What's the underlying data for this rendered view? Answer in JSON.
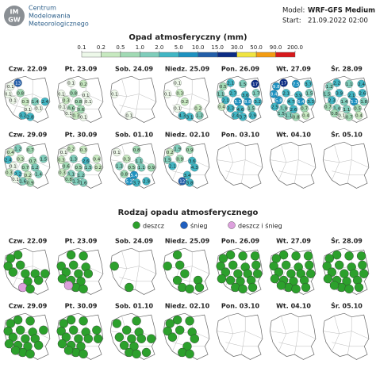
{
  "header": {
    "logo_top": "IM",
    "logo_bottom": "GW",
    "org": [
      "Centrum",
      "Modelowania",
      "Meteorologicznego"
    ],
    "model_label": "Model:",
    "model": "WRF-GFS Medium",
    "start_label": "Start:",
    "start": "21.09.2022 02:00"
  },
  "precip": {
    "title": "Opad atmosferyczny (mm)",
    "ticks": [
      0.1,
      0.2,
      0.5,
      {
        "value": 1,
        "label": "1.0"
      },
      {
        "value": 2,
        "label": "2.0"
      },
      {
        "value": 5,
        "label": "5.0"
      },
      {
        "value": 10,
        "label": "10.0"
      },
      {
        "value": 15,
        "label": "15.0"
      },
      {
        "value": 30,
        "label": "30.0"
      },
      {
        "value": 50,
        "label": "50.0"
      },
      {
        "value": 90,
        "label": "90.0"
      },
      {
        "value": 200,
        "label": "200.0"
      }
    ],
    "colors": [
      "#edf8e9",
      "#c7e9c0",
      "#a1dab4",
      "#7fcdbb",
      "#41b6c4",
      "#1d91c0",
      "#225ea8",
      "#0c2c84",
      "#f0e442",
      "#f39c12",
      "#d7191c"
    ]
  },
  "type_section": {
    "title": "Rodzaj opadu atmosferycznego",
    "types": [
      {
        "name": "deszcz",
        "color": "#2ca02c"
      },
      {
        "name": "śnieg",
        "color": "#1f5fbf"
      },
      {
        "name": "deszcz i śnieg",
        "color": "#dda0dd"
      }
    ]
  },
  "days": [
    {
      "label": "Czw. 22.09",
      "values": [
        13,
        0.1,
        null,
        null,
        0.1,
        0.8,
        null,
        null,
        0.1,
        0.3,
        1.4,
        2.4,
        null,
        null,
        0.1,
        0.1,
        3.2,
        2.8,
        null,
        null
      ],
      "types": [
        0,
        0,
        null,
        null,
        0,
        0,
        null,
        null,
        0,
        0,
        0,
        0,
        null,
        null,
        0,
        0,
        2,
        0,
        null,
        null
      ]
    },
    {
      "label": "Pt. 23.09",
      "values": [
        0.1,
        null,
        0.2,
        null,
        0.1,
        0.8,
        0.1,
        null,
        0.3,
        0.8,
        0.1,
        null,
        0.1,
        0.6,
        0.6,
        null,
        0.3,
        0.1,
        null,
        0.1
      ],
      "types": [
        0,
        null,
        0,
        null,
        0,
        0,
        0,
        null,
        0,
        0,
        0,
        null,
        0,
        0,
        0,
        null,
        0,
        0,
        null,
        2
      ]
    },
    {
      "label": "Sob. 24.09",
      "values": [
        null,
        null,
        null,
        null,
        0.1,
        null,
        null,
        null,
        null,
        null,
        null,
        null,
        null,
        null,
        null,
        null,
        0.1,
        null,
        null,
        null
      ],
      "types": [
        null,
        null,
        null,
        null,
        0,
        null,
        null,
        null,
        null,
        null,
        null,
        null,
        null,
        null,
        null,
        null,
        0,
        null,
        null,
        null
      ]
    },
    {
      "label": "Niedz. 25.09",
      "values": [
        0.1,
        null,
        null,
        null,
        0.1,
        0.3,
        null,
        null,
        null,
        0.2,
        null,
        null,
        null,
        0.1,
        null,
        0.2,
        4.3,
        3.1,
        1.2,
        null
      ],
      "types": [
        0,
        null,
        null,
        null,
        0,
        0,
        null,
        null,
        null,
        0,
        null,
        null,
        null,
        0,
        null,
        0,
        0,
        0,
        0,
        null
      ]
    },
    {
      "label": "Pon. 26.09",
      "values": [
        2.1,
        0.5,
        1.5,
        17,
        1.1,
        2.7,
        3.6,
        1.7,
        2.1,
        5.1,
        8.8,
        3.2,
        0.4,
        3.3,
        4.6,
        1.5,
        2.4,
        3.7,
        2.9,
        null
      ],
      "types": [
        0,
        0,
        0,
        0,
        0,
        0,
        0,
        0,
        0,
        0,
        0,
        0,
        0,
        0,
        0,
        0,
        0,
        0,
        0,
        null
      ]
    },
    {
      "label": "Wt. 27.09",
      "values": [
        17,
        9.8,
        7.5,
        3.7,
        8.4,
        2.1,
        3.9,
        1.5,
        5.8,
        4.7,
        6.4,
        3.3,
        2.5,
        1.9,
        2.6,
        0.7,
        1.1,
        0.8,
        0.4,
        1.5
      ],
      "types": [
        0,
        0,
        0,
        0,
        0,
        0,
        0,
        0,
        0,
        0,
        0,
        0,
        0,
        0,
        0,
        0,
        0,
        0,
        0,
        0
      ]
    },
    {
      "label": "Śr. 28.09",
      "values": [
        2.2,
        1.2,
        1.1,
        2.4,
        1.5,
        3.9,
        2.1,
        2.6,
        2.3,
        1.4,
        5.3,
        1.8,
        0.7,
        1.4,
        1.1,
        0.5,
        0.1,
        0.7,
        0.4,
        0.8
      ],
      "types": [
        0,
        0,
        0,
        0,
        0,
        0,
        0,
        0,
        0,
        0,
        0,
        0,
        0,
        0,
        0,
        0,
        0,
        0,
        0,
        0
      ]
    },
    {
      "label": "Czw. 29.09",
      "values": [
        1.2,
        0.4,
        0.7,
        null,
        2.4,
        0.3,
        0.7,
        1.5,
        0.1,
        0.7,
        1.2,
        null,
        0.3,
        2.2,
        0.2,
        1.4,
        1.6,
        0.9,
        null,
        0.1
      ],
      "types": [
        0,
        0,
        0,
        null,
        0,
        0,
        0,
        0,
        0,
        0,
        0,
        null,
        0,
        0,
        0,
        0,
        0,
        0,
        null,
        0
      ]
    },
    {
      "label": "Pt. 30.09",
      "values": [
        0.2,
        0.1,
        0.3,
        null,
        0.3,
        1.3,
        2.6,
        0.4,
        0.6,
        0.5,
        1.5,
        0.2,
        0.3,
        1.1,
        1.2,
        null,
        1.3,
        1.6,
        null,
        0.8
      ],
      "types": [
        0,
        0,
        0,
        null,
        0,
        0,
        0,
        0,
        0,
        0,
        0,
        0,
        0,
        0,
        0,
        null,
        0,
        0,
        null,
        0
      ]
    },
    {
      "label": "Sob. 01.10",
      "values": [
        null,
        0.1,
        0.8,
        null,
        null,
        0.3,
        1.1,
        null,
        1.3,
        0.5,
        1.1,
        0.9,
        null,
        0.8,
        5.4,
        null,
        5.2,
        3.7,
        2.9,
        null
      ],
      "types": [
        null,
        0,
        0,
        null,
        null,
        0,
        0,
        null,
        0,
        0,
        0,
        0,
        null,
        0,
        0,
        null,
        0,
        0,
        0,
        null
      ]
    },
    {
      "label": "Niedz. 02.10",
      "values": [
        1.9,
        0.2,
        0.9,
        null,
        1.5,
        0.9,
        3.6,
        null,
        2.1,
        null,
        4.3,
        null,
        null,
        null,
        3.4,
        null,
        12,
        3.8,
        null,
        null
      ],
      "types": [
        0,
        0,
        0,
        null,
        0,
        0,
        0,
        null,
        0,
        null,
        0,
        null,
        null,
        null,
        0,
        null,
        0,
        0,
        null,
        null
      ]
    },
    {
      "label": "Pon. 03.10",
      "values": [
        null,
        null,
        null,
        null,
        null,
        null,
        null,
        null,
        null,
        null,
        null,
        null,
        null,
        null,
        null,
        null,
        null,
        null,
        null,
        null
      ],
      "types": [
        null,
        null,
        null,
        null,
        null,
        null,
        null,
        null,
        null,
        null,
        null,
        null,
        null,
        null,
        null,
        null,
        null,
        null,
        null,
        null
      ]
    },
    {
      "label": "Wt. 04.10",
      "values": [
        null,
        null,
        null,
        null,
        null,
        null,
        null,
        null,
        null,
        null,
        null,
        null,
        null,
        null,
        null,
        null,
        null,
        null,
        null,
        null
      ],
      "types": [
        null,
        null,
        null,
        null,
        null,
        null,
        null,
        null,
        null,
        null,
        null,
        null,
        null,
        null,
        null,
        null,
        null,
        null,
        null,
        null
      ]
    },
    {
      "label": "Śr. 05.10",
      "values": [
        null,
        null,
        null,
        null,
        null,
        null,
        null,
        null,
        null,
        null,
        null,
        null,
        null,
        null,
        null,
        null,
        null,
        null,
        null,
        null
      ],
      "types": [
        null,
        null,
        null,
        null,
        null,
        null,
        null,
        null,
        null,
        null,
        null,
        null,
        null,
        null,
        null,
        null,
        null,
        null,
        null,
        null
      ]
    }
  ]
}
